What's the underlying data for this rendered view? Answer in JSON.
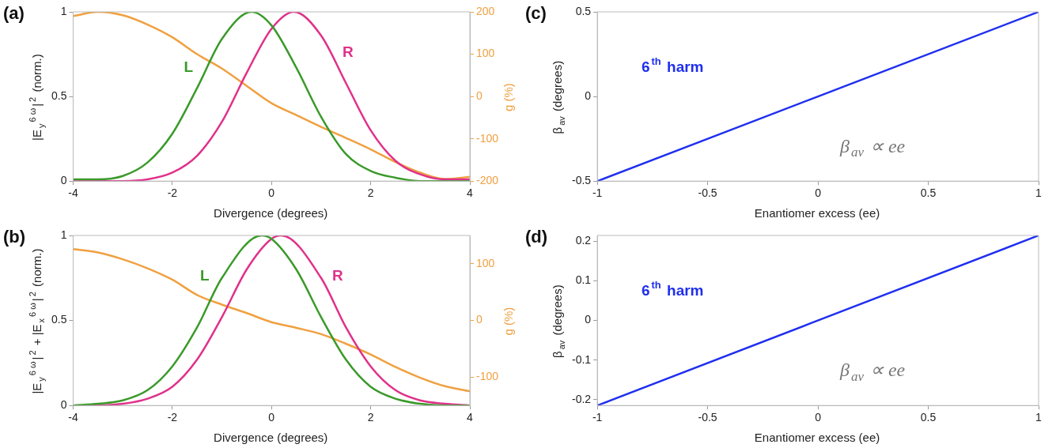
{
  "chart_data": [
    {
      "type": "line",
      "title": "(a)",
      "xlabel": "Divergence (degrees)",
      "ylabel": "|E$_{y}$$^{6 ω}$|$^{2}$ (norm.)",
      "y2label": "g (%)",
      "marker": "none",
      "line_style": "solid",
      "xlim": [
        -4,
        4
      ],
      "xticks": [
        -4,
        -2,
        0,
        2,
        4
      ],
      "ylim": [
        0,
        1
      ],
      "yticks": [
        0,
        0.5,
        1
      ],
      "y2lim": [
        -200,
        200
      ],
      "y2ticks": [
        -200,
        -100,
        0,
        100,
        200
      ],
      "series": [
        {
          "name": "L",
          "color": "#3a9a2a",
          "x": [
            -4,
            -3.5,
            -3,
            -2.5,
            -2,
            -1.5,
            -1,
            -0.4,
            0,
            0.5,
            1,
            1.5,
            2,
            2.5,
            3,
            3.5,
            4
          ],
          "values": [
            0.01,
            0.01,
            0.03,
            0.11,
            0.28,
            0.55,
            0.84,
            1,
            0.92,
            0.67,
            0.38,
            0.16,
            0.06,
            0.02,
            0,
            0,
            0
          ]
        },
        {
          "name": "R",
          "color": "#e0318a",
          "x": [
            -4,
            -3.5,
            -3,
            -2.5,
            -2,
            -1.5,
            -1,
            -0.5,
            0,
            0.45,
            1,
            1.5,
            2,
            2.5,
            3,
            3.5,
            4
          ],
          "values": [
            0,
            0,
            0,
            0.01,
            0.05,
            0.15,
            0.35,
            0.64,
            0.9,
            1,
            0.86,
            0.58,
            0.3,
            0.12,
            0.04,
            0.01,
            0.01
          ]
        },
        {
          "color": "#f0a040",
          "axis": "y2",
          "x": [
            -4,
            -3.5,
            -3,
            -2.5,
            -2,
            -1.5,
            -1,
            -0.5,
            0,
            0.5,
            1,
            1.5,
            2,
            2.5,
            3,
            3.5,
            4
          ],
          "values": [
            190,
            200,
            192,
            170,
            140,
            100,
            66,
            25,
            -16,
            -44,
            -72,
            -98,
            -125,
            -155,
            -180,
            -195,
            -190
          ]
        }
      ]
    },
    {
      "type": "line",
      "title": "(b)",
      "xlabel": "Divergence (degrees)",
      "ylabel": "|E$_{y}$$^{6 ω}$|$^{2}$ + |E$_{x}$$^{6 ω}$|$^{2}$ (norm.)",
      "y2label": "g (%)",
      "marker": "none",
      "line_style": "solid",
      "xlim": [
        -4,
        4
      ],
      "xticks": [
        -4,
        -2,
        0,
        2,
        4
      ],
      "ylim": [
        0,
        1
      ],
      "yticks": [
        0,
        0.5,
        1
      ],
      "y2lim": [
        -150,
        150
      ],
      "y2ticks": [
        -100,
        0,
        100
      ],
      "series": [
        {
          "name": "L",
          "color": "#3a9a2a",
          "x": [
            -4,
            -3.5,
            -3,
            -2.5,
            -2,
            -1.5,
            -1,
            -0.2,
            0,
            0.5,
            1,
            1.5,
            2,
            2.5,
            3,
            3.5,
            4
          ],
          "values": [
            0,
            0.01,
            0.03,
            0.09,
            0.23,
            0.46,
            0.75,
            1,
            0.98,
            0.8,
            0.52,
            0.27,
            0.11,
            0.04,
            0.01,
            0,
            0
          ]
        },
        {
          "name": "R",
          "color": "#e0318a",
          "x": [
            -4,
            -3.5,
            -3,
            -2.5,
            -2,
            -1.5,
            -1,
            -0.5,
            0,
            0.2,
            1,
            1.5,
            2,
            2.5,
            3,
            3.5,
            4
          ],
          "values": [
            0,
            0,
            0.01,
            0.04,
            0.11,
            0.27,
            0.52,
            0.8,
            0.98,
            1,
            0.75,
            0.46,
            0.23,
            0.09,
            0.03,
            0.01,
            0
          ]
        },
        {
          "color": "#f0a040",
          "axis": "y2",
          "x": [
            -4,
            -3.5,
            -3,
            -2.5,
            -2,
            -1.5,
            -1,
            -0.5,
            0,
            0.5,
            1,
            1.5,
            2,
            2.5,
            3,
            3.5,
            4
          ],
          "values": [
            126,
            120,
            108,
            92,
            72,
            45,
            28,
            13,
            -3,
            -13,
            -24,
            -41,
            -60,
            -82,
            -101,
            -116,
            -125
          ]
        }
      ]
    },
    {
      "type": "line",
      "title": "(c)",
      "xlabel": "Enantiomer excess (ee)",
      "ylabel": "β$_{av}$ (degrees)",
      "marker": "none",
      "line_style": "solid",
      "xlim": [
        -1,
        1
      ],
      "xticks": [
        -1,
        -0.5,
        0,
        0.5,
        1
      ],
      "ylim": [
        -0.5,
        0.5
      ],
      "yticks": [
        -0.5,
        0,
        0.5
      ],
      "annotations": [
        "β$_{av}$ ∝ ee"
      ],
      "series": [
        {
          "name": "6$^{th}$ harm",
          "color": "#1f2ff0",
          "x": [
            -1,
            1
          ],
          "values": [
            -0.5,
            0.5
          ]
        }
      ]
    },
    {
      "type": "line",
      "title": "(d)",
      "xlabel": "Enantiomer excess (ee)",
      "ylabel": "β$_{av}$ (degrees)",
      "marker": "none",
      "line_style": "solid",
      "xlim": [
        -1,
        1
      ],
      "xticks": [
        -1,
        -0.5,
        0,
        0.5,
        1
      ],
      "ylim": [
        -0.215,
        0.215
      ],
      "yticks": [
        -0.2,
        -0.1,
        0,
        0.1,
        0.2
      ],
      "annotations": [
        "β$_{av}$ ∝ ee"
      ],
      "series": [
        {
          "name": "6$^{th}$ harm",
          "color": "#1f2ff0",
          "x": [
            -1,
            1
          ],
          "values": [
            -0.215,
            0.215
          ]
        }
      ]
    }
  ]
}
